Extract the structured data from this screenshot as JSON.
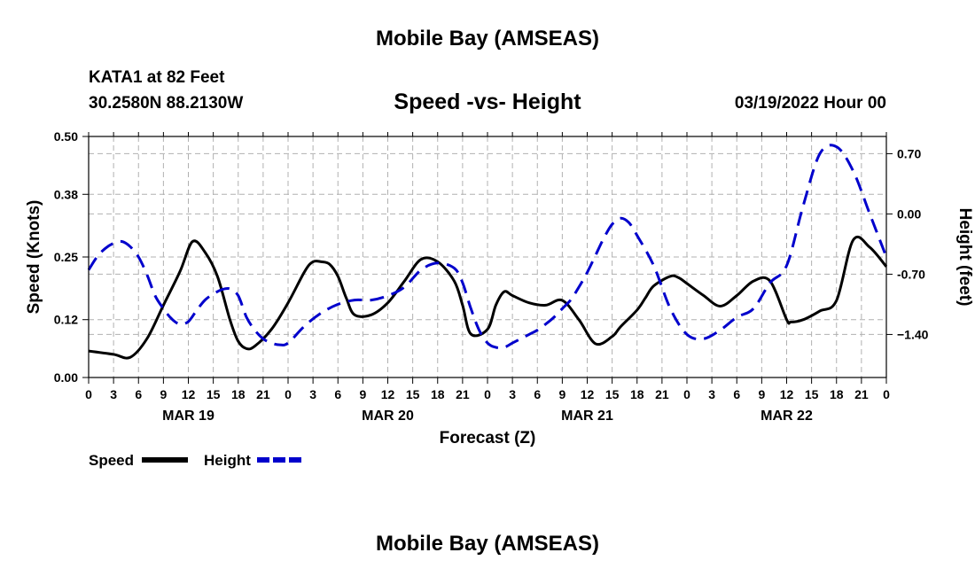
{
  "page": {
    "title": "Mobile Bay (AMSEAS)",
    "station": "KATA1 at 82 Feet",
    "coordinates": "30.2580N  88.2130W",
    "subtitle": "Speed -vs- Height",
    "datetime": "03/19/2022 Hour 00",
    "bottom_title": "Mobile Bay (AMSEAS)"
  },
  "chart_data": {
    "type": "line",
    "title": "Speed -vs- Height",
    "xlabel": "Forecast (Z)",
    "ylabel": "Speed (Knots)",
    "y2label": "Height (feet)",
    "x_unit": "forecast hour",
    "xlim": [
      0,
      96
    ],
    "ylim": [
      0.0,
      0.5
    ],
    "y2lim": [
      -1.9,
      0.9
    ],
    "x_ticks": [
      0,
      3,
      6,
      9,
      12,
      15,
      18,
      21,
      24,
      27,
      30,
      33,
      36,
      39,
      42,
      45,
      48,
      51,
      54,
      57,
      60,
      63,
      66,
      69,
      72,
      75,
      78,
      81,
      84,
      87,
      90,
      93,
      96
    ],
    "x_tick_labels": [
      "0",
      "3",
      "6",
      "9",
      "12",
      "15",
      "18",
      "21",
      "0",
      "3",
      "6",
      "9",
      "12",
      "15",
      "18",
      "21",
      "0",
      "3",
      "6",
      "9",
      "12",
      "15",
      "18",
      "21",
      "0",
      "3",
      "6",
      "9",
      "12",
      "15",
      "18",
      "21",
      "0"
    ],
    "date_labels": [
      {
        "x": 12,
        "label": "MAR 19"
      },
      {
        "x": 36,
        "label": "MAR 20"
      },
      {
        "x": 60,
        "label": "MAR 21"
      },
      {
        "x": 84,
        "label": "MAR 22"
      }
    ],
    "y_ticks": [
      0.0,
      0.12,
      0.25,
      0.38,
      0.5
    ],
    "y_tick_labels": [
      "0.00",
      "0.12",
      "0.25",
      "0.38",
      "0.50"
    ],
    "y2_ticks": [
      0.7,
      0.0,
      -0.7,
      -1.4
    ],
    "y2_tick_labels": [
      "0.70",
      "0.00",
      "-0.70",
      "−1.40"
    ],
    "grid": true,
    "legend_position": "bottom-left",
    "series": [
      {
        "name": "Speed",
        "axis": "left",
        "color": "#000000",
        "dash": "solid",
        "x": [
          0,
          3,
          5,
          7,
          9,
          11,
          12.5,
          14,
          15.5,
          17,
          18,
          19,
          20,
          22,
          24,
          26,
          27,
          28,
          29,
          30,
          31,
          32,
          34,
          36,
          38,
          40,
          42,
          44,
          45,
          46,
          48,
          49,
          50,
          51,
          53,
          55,
          57,
          59,
          61,
          63,
          64,
          66,
          67,
          68,
          70,
          71,
          72,
          74,
          76,
          78,
          80,
          82,
          84,
          84.5,
          86,
          88,
          90,
          92,
          94,
          96
        ],
        "values": [
          0.055,
          0.048,
          0.042,
          0.08,
          0.15,
          0.22,
          0.282,
          0.26,
          0.21,
          0.12,
          0.075,
          0.06,
          0.065,
          0.1,
          0.155,
          0.22,
          0.24,
          0.24,
          0.235,
          0.21,
          0.165,
          0.13,
          0.13,
          0.155,
          0.2,
          0.245,
          0.24,
          0.2,
          0.15,
          0.09,
          0.1,
          0.15,
          0.178,
          0.17,
          0.155,
          0.15,
          0.16,
          0.12,
          0.07,
          0.085,
          0.105,
          0.14,
          0.165,
          0.19,
          0.21,
          0.207,
          0.195,
          0.17,
          0.148,
          0.17,
          0.2,
          0.2,
          0.12,
          0.115,
          0.12,
          0.138,
          0.16,
          0.285,
          0.27,
          0.23
        ]
      },
      {
        "name": "Height",
        "axis": "right",
        "color": "#0000cc",
        "dash": "dashed",
        "x": [
          0,
          1,
          2,
          3,
          4,
          5,
          6,
          7,
          8,
          9,
          10,
          11,
          12,
          13,
          14,
          15,
          16,
          17,
          18,
          19,
          20,
          21,
          22,
          23,
          24,
          26,
          28,
          30,
          32,
          34,
          36,
          38,
          40,
          42,
          44,
          45,
          46,
          47,
          48,
          49,
          50,
          51,
          52,
          53,
          54,
          55,
          56,
          57,
          58,
          59,
          60,
          61,
          62,
          63,
          64,
          65,
          66,
          68,
          70,
          72,
          74,
          76,
          78,
          80,
          82,
          84,
          86,
          88,
          90,
          92,
          94,
          96
        ],
        "values": [
          -0.65,
          -0.5,
          -0.4,
          -0.34,
          -0.32,
          -0.38,
          -0.5,
          -0.7,
          -0.95,
          -1.1,
          -1.22,
          -1.28,
          -1.25,
          -1.12,
          -1.0,
          -0.93,
          -0.88,
          -0.87,
          -0.95,
          -1.2,
          -1.35,
          -1.45,
          -1.5,
          -1.52,
          -1.5,
          -1.3,
          -1.15,
          -1.05,
          -1.0,
          -1.0,
          -0.95,
          -0.85,
          -0.65,
          -0.57,
          -0.63,
          -0.8,
          -1.1,
          -1.35,
          -1.5,
          -1.55,
          -1.55,
          -1.5,
          -1.45,
          -1.4,
          -1.35,
          -1.28,
          -1.2,
          -1.1,
          -1.0,
          -0.85,
          -0.68,
          -0.48,
          -0.28,
          -0.12,
          -0.05,
          -0.1,
          -0.25,
          -0.6,
          -1.1,
          -1.4,
          -1.45,
          -1.35,
          -1.2,
          -1.1,
          -0.8,
          -0.6,
          0.1,
          0.7,
          0.78,
          0.5,
          0.0,
          -0.5
        ]
      }
    ]
  }
}
